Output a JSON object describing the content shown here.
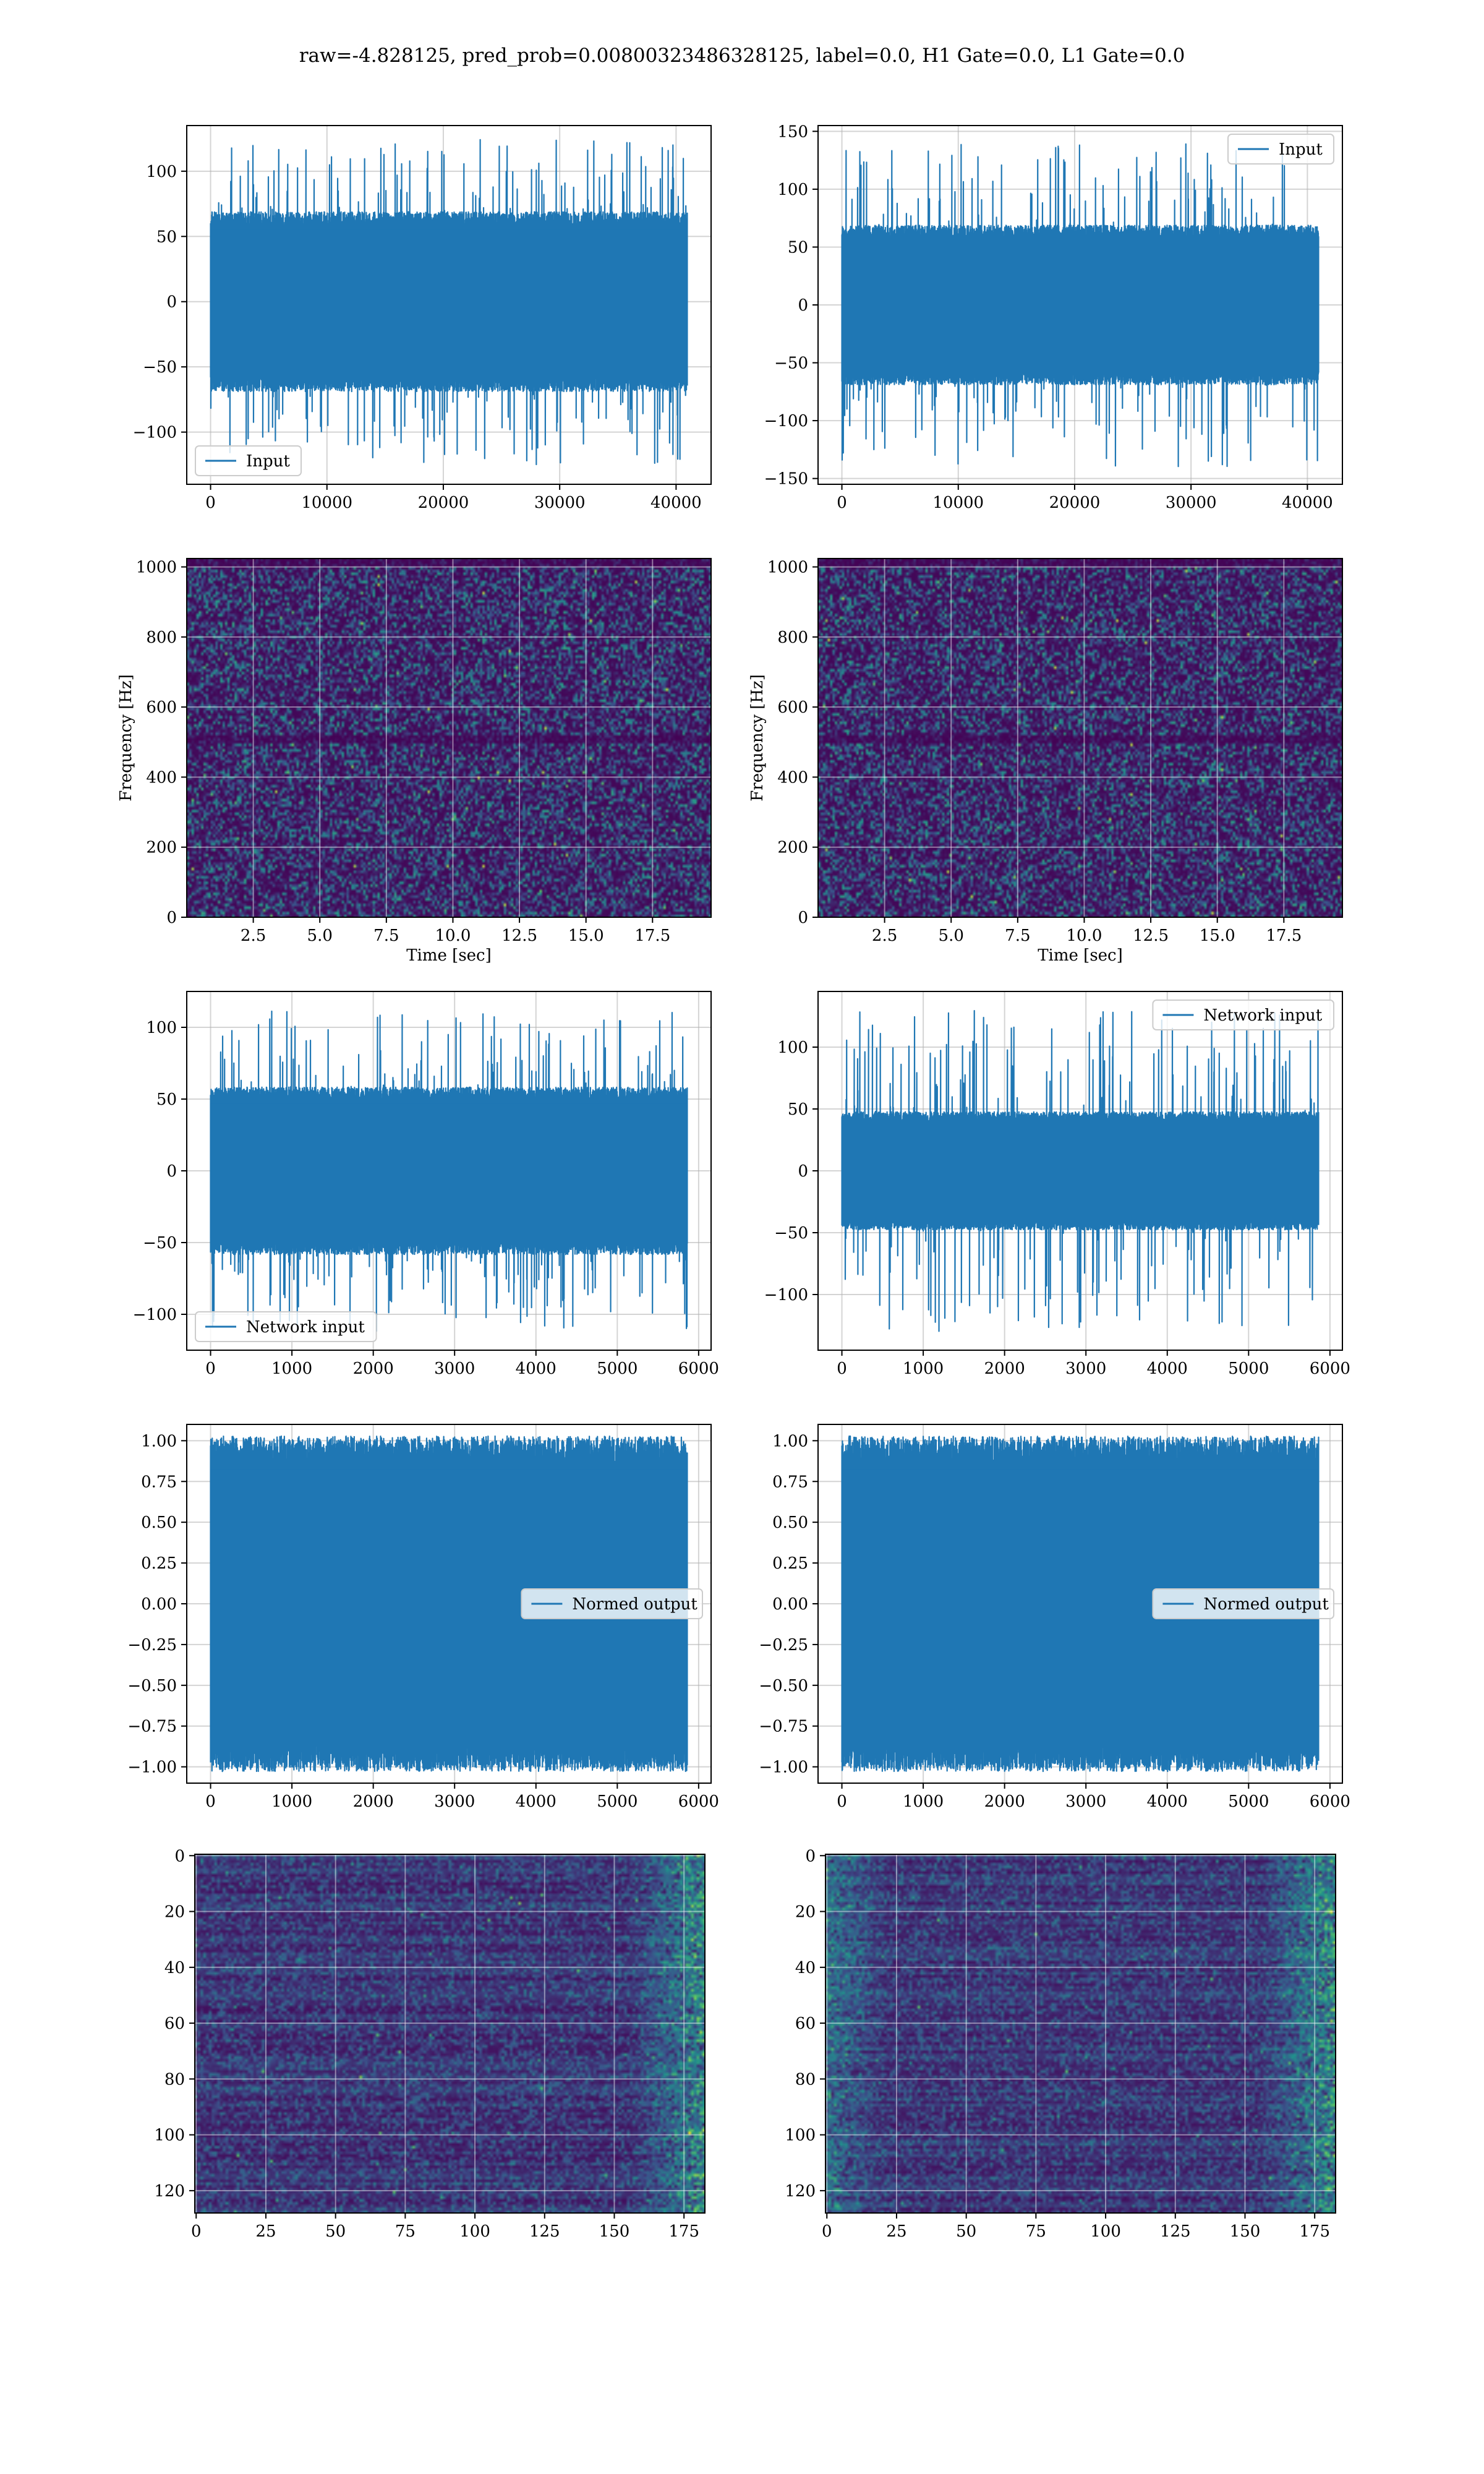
{
  "figure": {
    "suptitle": "raw=-4.828125, pred_prob=0.00800323486328125, label=0.0, H1 Gate=0.0, L1 Gate=0.0"
  },
  "colors": {
    "series": "#1f77b4",
    "viridis_low": "#440154",
    "viridis_mid": "#21918c",
    "viridis_high": "#fde725"
  },
  "chart_data": [
    {
      "id": "r1c1",
      "type": "line",
      "x_range": [
        0,
        40960
      ],
      "xlim": [
        -2048,
        43008
      ],
      "ylim": [
        -140,
        135
      ],
      "xticks": [
        0,
        10000,
        20000,
        30000,
        40000
      ],
      "xtick_labels": [
        "0",
        "10000",
        "20000",
        "30000",
        "40000"
      ],
      "yticks": [
        -100,
        -50,
        0,
        50,
        100
      ],
      "ytick_labels": [
        "−100",
        "−50",
        "0",
        "50",
        "100"
      ],
      "envelope": {
        "typical": 65,
        "peak": 125
      },
      "legend": {
        "label": "Input",
        "loc": "lower left"
      },
      "grid": true
    },
    {
      "id": "r1c2",
      "type": "line",
      "x_range": [
        0,
        40960
      ],
      "xlim": [
        -2048,
        43008
      ],
      "ylim": [
        -155,
        155
      ],
      "xticks": [
        0,
        10000,
        20000,
        30000,
        40000
      ],
      "xtick_labels": [
        "0",
        "10000",
        "20000",
        "30000",
        "40000"
      ],
      "yticks": [
        -150,
        -100,
        -50,
        0,
        50,
        100,
        150
      ],
      "ytick_labels": [
        "−150",
        "−100",
        "−50",
        "0",
        "50",
        "100",
        "150"
      ],
      "envelope": {
        "typical": 65,
        "peak": 140
      },
      "legend": {
        "label": "Input",
        "loc": "upper right"
      },
      "grid": true
    },
    {
      "id": "r2c1",
      "type": "heatmap",
      "xlim": [
        0,
        19.7
      ],
      "ylim": [
        0,
        1024
      ],
      "xticks": [
        2.5,
        5.0,
        7.5,
        10.0,
        12.5,
        15.0,
        17.5
      ],
      "xtick_labels": [
        "2.5",
        "5.0",
        "7.5",
        "10.0",
        "12.5",
        "15.0",
        "17.5"
      ],
      "yticks": [
        0,
        200,
        400,
        600,
        800,
        1000
      ],
      "ytick_labels": [
        "0",
        "200",
        "400",
        "600",
        "800",
        "1000"
      ],
      "xlabel": "Time [sec]",
      "ylabel": "Frequency [Hz]",
      "colormap": "viridis",
      "grid": true
    },
    {
      "id": "r2c2",
      "type": "heatmap",
      "xlim": [
        0,
        19.7
      ],
      "ylim": [
        0,
        1024
      ],
      "xticks": [
        2.5,
        5.0,
        7.5,
        10.0,
        12.5,
        15.0,
        17.5
      ],
      "xtick_labels": [
        "2.5",
        "5.0",
        "7.5",
        "10.0",
        "12.5",
        "15.0",
        "17.5"
      ],
      "yticks": [
        0,
        200,
        400,
        600,
        800,
        1000
      ],
      "ytick_labels": [
        "0",
        "200",
        "400",
        "600",
        "800",
        "1000"
      ],
      "xlabel": "Time [sec]",
      "ylabel": "Frequency [Hz]",
      "colormap": "viridis",
      "grid": true
    },
    {
      "id": "r3c1",
      "type": "line",
      "x_range": [
        0,
        5860
      ],
      "xlim": [
        -293,
        6153
      ],
      "ylim": [
        -125,
        125
      ],
      "xticks": [
        0,
        1000,
        2000,
        3000,
        4000,
        5000,
        6000
      ],
      "xtick_labels": [
        "0",
        "1000",
        "2000",
        "3000",
        "4000",
        "5000",
        "6000"
      ],
      "yticks": [
        -100,
        -50,
        0,
        50,
        100
      ],
      "ytick_labels": [
        "−100",
        "−50",
        "0",
        "50",
        "100"
      ],
      "envelope": {
        "typical": 55,
        "peak": 112
      },
      "legend": {
        "label": "Network input",
        "loc": "lower left"
      },
      "grid": true
    },
    {
      "id": "r3c2",
      "type": "line",
      "x_range": [
        0,
        5860
      ],
      "xlim": [
        -293,
        6153
      ],
      "ylim": [
        -145,
        145
      ],
      "xticks": [
        0,
        1000,
        2000,
        3000,
        4000,
        5000,
        6000
      ],
      "xtick_labels": [
        "0",
        "1000",
        "2000",
        "3000",
        "4000",
        "5000",
        "6000"
      ],
      "yticks": [
        -100,
        -50,
        0,
        50,
        100
      ],
      "ytick_labels": [
        "−100",
        "−50",
        "0",
        "50",
        "100"
      ],
      "envelope": {
        "typical": 45,
        "peak": 130
      },
      "legend": {
        "label": "Network input",
        "loc": "upper right"
      },
      "grid": true
    },
    {
      "id": "r4c1",
      "type": "line",
      "x_range": [
        0,
        5860
      ],
      "xlim": [
        -293,
        6153
      ],
      "ylim": [
        -1.1,
        1.1
      ],
      "xticks": [
        0,
        1000,
        2000,
        3000,
        4000,
        5000,
        6000
      ],
      "xtick_labels": [
        "0",
        "1000",
        "2000",
        "3000",
        "4000",
        "5000",
        "6000"
      ],
      "yticks": [
        -1.0,
        -0.75,
        -0.5,
        -0.25,
        0.0,
        0.25,
        0.5,
        0.75,
        1.0
      ],
      "ytick_labels": [
        "−1.00",
        "−0.75",
        "−0.50",
        "−0.25",
        "0.00",
        "0.25",
        "0.50",
        "0.75",
        "1.00"
      ],
      "envelope": {
        "typical": 0.97,
        "peak": 1.0
      },
      "legend": {
        "label": "Normed output",
        "loc": "center right"
      },
      "grid": true
    },
    {
      "id": "r4c2",
      "type": "line",
      "x_range": [
        0,
        5860
      ],
      "xlim": [
        -293,
        6153
      ],
      "ylim": [
        -1.1,
        1.1
      ],
      "xticks": [
        0,
        1000,
        2000,
        3000,
        4000,
        5000,
        6000
      ],
      "xtick_labels": [
        "0",
        "1000",
        "2000",
        "3000",
        "4000",
        "5000",
        "6000"
      ],
      "yticks": [
        -1.0,
        -0.75,
        -0.5,
        -0.25,
        0.0,
        0.25,
        0.5,
        0.75,
        1.0
      ],
      "ytick_labels": [
        "−1.00",
        "−0.75",
        "−0.50",
        "−0.25",
        "0.00",
        "0.25",
        "0.50",
        "0.75",
        "1.00"
      ],
      "envelope": {
        "typical": 0.97,
        "peak": 1.0
      },
      "legend": {
        "label": "Normed output",
        "loc": "center right"
      },
      "grid": true
    },
    {
      "id": "r5c1",
      "type": "heatmap",
      "xlim": [
        -0.5,
        182.5
      ],
      "ylim": [
        128,
        -0.5
      ],
      "xticks": [
        0,
        25,
        50,
        75,
        100,
        125,
        150,
        175
      ],
      "xtick_labels": [
        "0",
        "25",
        "50",
        "75",
        "100",
        "125",
        "150",
        "175"
      ],
      "yticks": [
        0,
        20,
        40,
        60,
        80,
        100,
        120
      ],
      "ytick_labels": [
        "0",
        "20",
        "40",
        "60",
        "80",
        "100",
        "120"
      ],
      "colormap": "viridis",
      "grid": true
    },
    {
      "id": "r5c2",
      "type": "heatmap",
      "xlim": [
        -0.5,
        182.5
      ],
      "ylim": [
        128,
        -0.5
      ],
      "xticks": [
        0,
        25,
        50,
        75,
        100,
        125,
        150,
        175
      ],
      "xtick_labels": [
        "0",
        "25",
        "50",
        "75",
        "100",
        "125",
        "150",
        "175"
      ],
      "yticks": [
        0,
        20,
        40,
        60,
        80,
        100,
        120
      ],
      "ytick_labels": [
        "0",
        "20",
        "40",
        "60",
        "80",
        "100",
        "120"
      ],
      "colormap": "viridis",
      "grid": true
    }
  ]
}
